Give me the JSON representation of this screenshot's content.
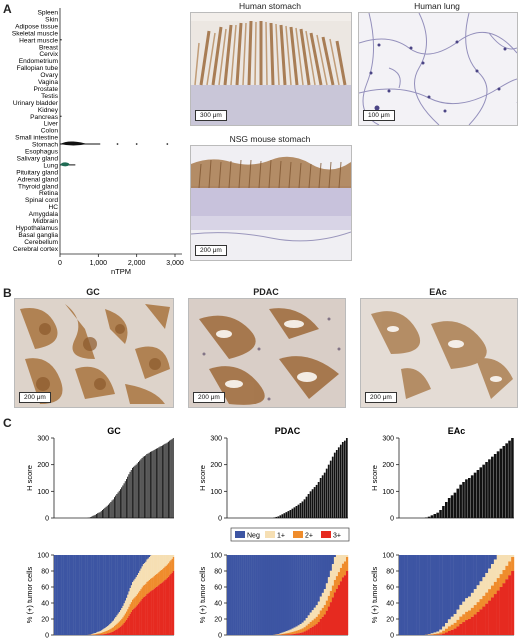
{
  "panel_labels": {
    "a": "A",
    "b": "B",
    "c": "C"
  },
  "panel_a": {
    "tissues": [
      "Spleen",
      "Skin",
      "Adipose tissue",
      "Skeletal muscle",
      "Heart muscle",
      "Breast",
      "Cervix",
      "Endometrium",
      "Fallopian tube",
      "Ovary",
      "Vagina",
      "Prostate",
      "Testis",
      "Urinary bladder",
      "Kidney",
      "Pancreas",
      "Liver",
      "Colon",
      "Small intestine",
      "Stomach",
      "Esophagus",
      "Salivary gland",
      "Lung",
      "Pituitary gland",
      "Adrenal gland",
      "Thyroid gland",
      "Retina",
      "Spinal cord",
      "HC",
      "Amygdala",
      "Midbrain",
      "Hypothalamus",
      "Basal ganglia",
      "Cerebellum",
      "Cerebral cortex"
    ],
    "x_ticks": [
      "0",
      "1,000",
      "2,000",
      "3,000"
    ],
    "xlabel": "nTPM",
    "images": {
      "human_stomach": {
        "title": "Human stomach",
        "scale": "300 μm"
      },
      "human_lung": {
        "title": "Human lung",
        "scale": "100 μm"
      },
      "mouse_stomach": {
        "title": "NSG mouse stomach",
        "scale": "200 μm"
      }
    }
  },
  "panel_b": {
    "gc": {
      "title": "GC",
      "scale": "200 μm"
    },
    "pdac": {
      "title": "PDAC",
      "scale": "200 μm"
    },
    "eac": {
      "title": "EAc",
      "scale": "200 μm"
    }
  },
  "panel_c": {
    "titles": [
      "GC",
      "PDAC",
      "EAc"
    ],
    "h_ylabel": "H score",
    "p_ylabel": "% (+) tumor cells",
    "h_ticks": [
      "0",
      "100",
      "200",
      "300"
    ],
    "p_ticks": [
      "0",
      "20",
      "40",
      "60",
      "80",
      "100"
    ],
    "legend": [
      {
        "label": "Neg",
        "color": "#3d55a3"
      },
      {
        "label": "1+",
        "color": "#f6dfb3"
      },
      {
        "label": "2+",
        "color": "#ef8c2c"
      },
      {
        "label": "3+",
        "color": "#e62a20"
      }
    ]
  },
  "chart_data": [
    {
      "type": "box",
      "title": "",
      "xlabel": "nTPM",
      "xlim": [
        0,
        3000
      ],
      "categories": [
        "Spleen",
        "Skin",
        "Adipose tissue",
        "Skeletal muscle",
        "Heart muscle",
        "Breast",
        "Cervix",
        "Endometrium",
        "Fallopian tube",
        "Ovary",
        "Vagina",
        "Prostate",
        "Testis",
        "Urinary bladder",
        "Kidney",
        "Pancreas",
        "Liver",
        "Colon",
        "Small intestine",
        "Stomach",
        "Esophagus",
        "Salivary gland",
        "Lung",
        "Pituitary gland",
        "Adrenal gland",
        "Thyroid gland",
        "Retina",
        "Spinal cord",
        "HC",
        "Amygdala",
        "Midbrain",
        "Hypothalamus",
        "Basal ganglia",
        "Cerebellum",
        "Cerebral cortex"
      ],
      "nonzero": [
        {
          "tissue": "Heart muscle",
          "median": 5,
          "max": 20
        },
        {
          "tissue": "Pancreas",
          "median": 5,
          "max": 15
        },
        {
          "tissue": "Stomach",
          "median": 350,
          "q1": 150,
          "q3": 700,
          "max": 1050,
          "outliers": [
            1500,
            2000,
            2800
          ]
        },
        {
          "tissue": "Lung",
          "median": 150,
          "q1": 50,
          "q3": 250,
          "max": 400
        }
      ]
    },
    {
      "type": "bar",
      "title": "GC",
      "ylabel": "H score",
      "ylim": [
        0,
        300
      ],
      "x": [
        1,
        2,
        3,
        4,
        5,
        6,
        7,
        8,
        9,
        10,
        11,
        12,
        13,
        14,
        15,
        16,
        17,
        18,
        19,
        20,
        21,
        22,
        23,
        24,
        25,
        26,
        27,
        28,
        29,
        30,
        31,
        32,
        33,
        34,
        35,
        36,
        37,
        38,
        39,
        40,
        41,
        42,
        43,
        44,
        45,
        46,
        47,
        48,
        49,
        50,
        51,
        52,
        53,
        54,
        55,
        56,
        57,
        58,
        59,
        60,
        61,
        62,
        63,
        64,
        65,
        66,
        67,
        68,
        69,
        70,
        71,
        72,
        73,
        74,
        75,
        76,
        77,
        78,
        79,
        80,
        81,
        82,
        83,
        84,
        85,
        86,
        87,
        88,
        89,
        90,
        91,
        92,
        93,
        94,
        95,
        96,
        97,
        98,
        99,
        100
      ],
      "values": [
        0,
        0,
        0,
        0,
        0,
        0,
        0,
        0,
        0,
        0,
        0,
        0,
        0,
        0,
        0,
        0,
        0,
        0,
        0,
        0,
        0,
        0,
        0,
        0,
        0,
        0,
        0,
        0,
        1,
        2,
        3,
        5,
        8,
        10,
        12,
        15,
        18,
        20,
        22,
        26,
        30,
        34,
        38,
        42,
        46,
        50,
        55,
        60,
        66,
        70,
        78,
        84,
        90,
        96,
        102,
        108,
        115,
        122,
        130,
        138,
        146,
        155,
        164,
        173,
        180,
        188,
        192,
        196,
        200,
        205,
        210,
        215,
        220,
        225,
        230,
        232,
        235,
        240,
        242,
        245,
        248,
        250,
        252,
        255,
        258,
        260,
        262,
        265,
        268,
        270,
        272,
        275,
        278,
        280,
        283,
        286,
        290,
        293,
        296,
        300
      ]
    },
    {
      "type": "bar",
      "title": "PDAC",
      "ylabel": "H score",
      "ylim": [
        0,
        300
      ],
      "x": [
        1,
        2,
        3,
        4,
        5,
        6,
        7,
        8,
        9,
        10,
        11,
        12,
        13,
        14,
        15,
        16,
        17,
        18,
        19,
        20,
        21,
        22,
        23,
        24,
        25,
        26,
        27,
        28,
        29,
        30,
        31,
        32,
        33,
        34,
        35,
        36,
        37,
        38,
        39,
        40,
        41,
        42,
        43,
        44,
        45,
        46,
        47,
        48,
        49,
        50,
        51,
        52,
        53,
        54,
        55,
        56,
        57,
        58,
        59,
        60
      ],
      "values": [
        0,
        0,
        0,
        0,
        0,
        0,
        0,
        0,
        0,
        0,
        0,
        0,
        0,
        0,
        0,
        0,
        0,
        0,
        0,
        0,
        0,
        0,
        0,
        2,
        4,
        6,
        10,
        14,
        18,
        22,
        26,
        30,
        35,
        40,
        45,
        50,
        56,
        62,
        70,
        80,
        90,
        100,
        108,
        116,
        124,
        135,
        150,
        160,
        170,
        185,
        200,
        215,
        230,
        245,
        255,
        265,
        275,
        285,
        290,
        300
      ]
    },
    {
      "type": "bar",
      "title": "EAc",
      "ylabel": "H score",
      "ylim": [
        0,
        300
      ],
      "x": [
        1,
        2,
        3,
        4,
        5,
        6,
        7,
        8,
        9,
        10,
        11,
        12,
        13,
        14,
        15,
        16,
        17,
        18,
        19,
        20,
        21,
        22,
        23,
        24,
        25,
        26,
        27,
        28,
        29,
        30,
        31,
        32,
        33,
        34,
        35,
        36,
        37,
        38,
        39,
        40
      ],
      "values": [
        0,
        0,
        0,
        0,
        0,
        0,
        0,
        0,
        0,
        2,
        5,
        10,
        15,
        20,
        30,
        45,
        60,
        75,
        85,
        95,
        110,
        125,
        135,
        145,
        150,
        160,
        170,
        180,
        190,
        200,
        210,
        220,
        230,
        240,
        250,
        260,
        270,
        280,
        290,
        300
      ]
    }
  ]
}
